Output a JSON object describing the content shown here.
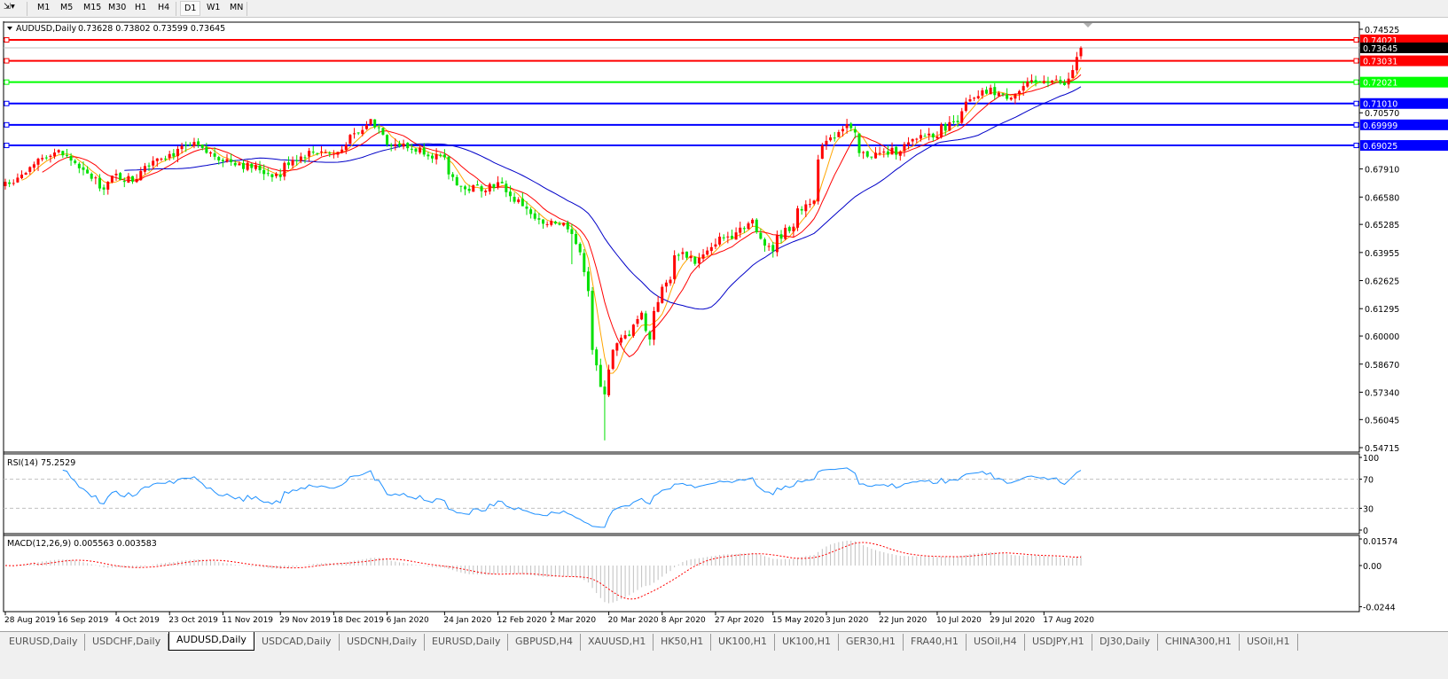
{
  "toolbar": {
    "timeframes": [
      "M1",
      "M5",
      "M15",
      "M30",
      "H1",
      "H4",
      "D1",
      "W1",
      "MN"
    ],
    "active": "D1"
  },
  "chart_header": {
    "symbol": "AUDUSD,Daily",
    "ohlc": "0.73628 0.73802 0.73599 0.73645"
  },
  "price_axis": {
    "ticks": [
      "0.74525",
      "0.70570",
      "0.67910",
      "0.66580",
      "0.65285",
      "0.63955",
      "0.62625",
      "0.61295",
      "0.60000",
      "0.58670",
      "0.57340",
      "0.56045",
      "0.54715"
    ],
    "range": [
      0.54715,
      0.74525
    ]
  },
  "current_price": {
    "label": "0.73645",
    "value": 0.73645
  },
  "levels": [
    {
      "label": "0.74021",
      "value": 0.74021,
      "color": "#ff0000"
    },
    {
      "label": "0.73031",
      "value": 0.73031,
      "color": "#ff0000"
    },
    {
      "label": "0.72021",
      "value": 0.72021,
      "color": "#00ff00"
    },
    {
      "label": "0.71010",
      "value": 0.7101,
      "color": "#0000ff"
    },
    {
      "label": "0.69999",
      "value": 0.69999,
      "color": "#0000ff"
    },
    {
      "label": "0.69025",
      "value": 0.69025,
      "color": "#0000ff"
    }
  ],
  "colors": {
    "bull": "#ff0000",
    "bear": "#00e000",
    "ma_fast": "#ffa500",
    "ma_mid": "#ff0000",
    "ma_slow": "#0000c8",
    "rsi": "#1e90ff",
    "macd_hist": "#c0c0c0",
    "macd_signal": "#ff0000"
  },
  "rsi": {
    "label": "RSI(14) 75.2529",
    "ticks": [
      "100",
      "70",
      "30",
      "0"
    ],
    "levels": [
      70,
      30
    ]
  },
  "macd": {
    "label": "MACD(12,26,9) 0.005563 0.003583",
    "ticks": [
      "0.01574",
      "0.00",
      "-0.0244"
    ]
  },
  "chart_data": {
    "type": "candlestick",
    "symbol": "AUDUSD",
    "timeframe": "Daily",
    "ylim": [
      0.54715,
      0.74525
    ],
    "approx_close_path": [
      [
        "2019-08-28",
        0.673
      ],
      [
        "2019-09-04",
        0.677
      ],
      [
        "2019-09-12",
        0.687
      ],
      [
        "2019-09-16",
        0.687
      ],
      [
        "2019-09-25",
        0.676
      ],
      [
        "2019-10-01",
        0.671
      ],
      [
        "2019-10-04",
        0.676
      ],
      [
        "2019-10-10",
        0.674
      ],
      [
        "2019-10-18",
        0.685
      ],
      [
        "2019-10-23",
        0.686
      ],
      [
        "2019-10-31",
        0.69
      ],
      [
        "2019-11-08",
        0.685
      ],
      [
        "2019-11-20",
        0.68
      ],
      [
        "2019-11-29",
        0.676
      ],
      [
        "2019-12-04",
        0.684
      ],
      [
        "2019-12-13",
        0.688
      ],
      [
        "2019-12-18",
        0.686
      ],
      [
        "2019-12-31",
        0.702
      ],
      [
        "2020-01-06",
        0.692
      ],
      [
        "2020-01-10",
        0.69
      ],
      [
        "2020-01-20",
        0.687
      ],
      [
        "2020-01-24",
        0.683
      ],
      [
        "2020-01-31",
        0.669
      ],
      [
        "2020-02-12",
        0.672
      ],
      [
        "2020-02-21",
        0.661
      ],
      [
        "2020-02-28",
        0.651
      ],
      [
        "2020-03-02",
        0.655
      ],
      [
        "2020-03-09",
        0.65
      ],
      [
        "2020-03-12",
        0.632
      ],
      [
        "2020-03-18",
        0.575
      ],
      [
        "2020-03-19",
        0.574
      ],
      [
        "2020-03-20",
        0.585
      ],
      [
        "2020-03-25",
        0.598
      ],
      [
        "2020-04-01",
        0.61
      ],
      [
        "2020-04-03",
        0.598
      ],
      [
        "2020-04-08",
        0.622
      ],
      [
        "2020-04-14",
        0.64
      ],
      [
        "2020-04-20",
        0.635
      ],
      [
        "2020-04-27",
        0.645
      ],
      [
        "2020-05-01",
        0.648
      ],
      [
        "2020-05-08",
        0.654
      ],
      [
        "2020-05-15",
        0.641
      ],
      [
        "2020-05-22",
        0.653
      ],
      [
        "2020-05-29",
        0.666
      ],
      [
        "2020-06-03",
        0.694
      ],
      [
        "2020-06-05",
        0.695
      ],
      [
        "2020-06-10",
        0.7
      ],
      [
        "2020-06-15",
        0.686
      ],
      [
        "2020-06-22",
        0.686
      ],
      [
        "2020-06-29",
        0.689
      ],
      [
        "2020-07-06",
        0.695
      ],
      [
        "2020-07-10",
        0.696
      ],
      [
        "2020-07-15",
        0.7
      ],
      [
        "2020-07-22",
        0.711
      ],
      [
        "2020-07-29",
        0.716
      ],
      [
        "2020-08-03",
        0.713
      ],
      [
        "2020-08-10",
        0.718
      ],
      [
        "2020-08-17",
        0.722
      ],
      [
        "2020-08-24",
        0.718
      ],
      [
        "2020-08-26",
        0.726
      ],
      [
        "2020-08-27",
        0.731
      ],
      [
        "2020-08-28",
        0.73645
      ]
    ],
    "x_ticks": [
      [
        "2019-08-28",
        "28 Aug 2019"
      ],
      [
        "2019-09-16",
        "16 Sep 2019"
      ],
      [
        "2019-10-04",
        "4 Oct 2019"
      ],
      [
        "2019-10-23",
        "23 Oct 2019"
      ],
      [
        "2019-11-11",
        "11 Nov 2019"
      ],
      [
        "2019-11-29",
        "29 Nov 2019"
      ],
      [
        "2019-12-18",
        "18 Dec 2019"
      ],
      [
        "2020-01-06",
        "6 Jan 2020"
      ],
      [
        "2020-01-24",
        "24 Jan 2020"
      ],
      [
        "2020-02-12",
        "12 Feb 2020"
      ],
      [
        "2020-03-02",
        "2 Mar 2020"
      ],
      [
        "2020-03-20",
        "20 Mar 2020"
      ],
      [
        "2020-04-08",
        "8 Apr 2020"
      ],
      [
        "2020-04-27",
        "27 Apr 2020"
      ],
      [
        "2020-05-15",
        "15 May 2020"
      ],
      [
        "2020-06-03",
        "3 Jun 2020"
      ],
      [
        "2020-06-22",
        "22 Jun 2020"
      ],
      [
        "2020-07-10",
        "10 Jul 2020"
      ],
      [
        "2020-07-29",
        "29 Jul 2020"
      ],
      [
        "2020-08-17",
        "17 Aug 2020"
      ]
    ]
  },
  "tabs": [
    {
      "label": "EURUSD,Daily"
    },
    {
      "label": "USDCHF,Daily"
    },
    {
      "label": "AUDUSD,Daily",
      "active": true
    },
    {
      "label": "USDCAD,Daily"
    },
    {
      "label": "USDCNH,Daily"
    },
    {
      "label": "EURUSD,Daily"
    },
    {
      "label": "GBPUSD,H4"
    },
    {
      "label": "XAUUSD,H1"
    },
    {
      "label": "HK50,H1"
    },
    {
      "label": "UK100,H1"
    },
    {
      "label": "UK100,H1"
    },
    {
      "label": "GER30,H1"
    },
    {
      "label": "FRA40,H1"
    },
    {
      "label": "USOil,H4"
    },
    {
      "label": "USDJPY,H1"
    },
    {
      "label": "DJ30,Daily"
    },
    {
      "label": "CHINA300,H1"
    },
    {
      "label": "USOil,H1"
    }
  ]
}
